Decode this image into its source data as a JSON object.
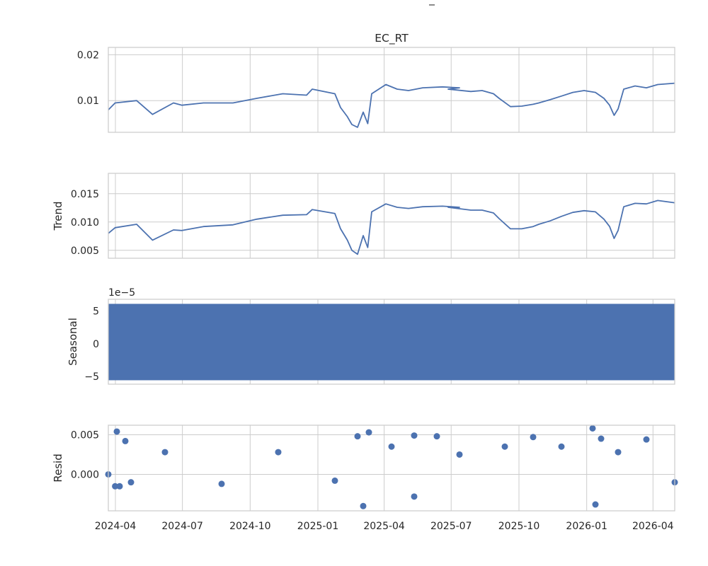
{
  "figure": {
    "suptitle": "_",
    "line_color": "#4c72b0",
    "grid_color": "#cccccc",
    "spine_color": "#cccccc",
    "background": "#ffffff"
  },
  "chart_data": [
    {
      "type": "line",
      "title": "EC_RT",
      "ylabel": "",
      "x_range": [
        "2024-03-20",
        "2026-04-30"
      ],
      "ylim": [
        0.0031,
        0.0216
      ],
      "yticks": [
        {
          "v": 0.01,
          "label": "0.01"
        },
        {
          "v": 0.02,
          "label": "0.02"
        }
      ],
      "grid": true,
      "series": [
        {
          "values": [
            [
              0.0,
              0.008
            ],
            [
              0.012,
              0.0095
            ],
            [
              0.05,
              0.01
            ],
            [
              0.078,
              0.007
            ],
            [
              0.115,
              0.0095
            ],
            [
              0.13,
              0.009
            ],
            [
              0.168,
              0.0095
            ],
            [
              0.22,
              0.0095
            ],
            [
              0.262,
              0.0105
            ],
            [
              0.308,
              0.0115
            ],
            [
              0.35,
              0.0112
            ],
            [
              0.36,
              0.0125
            ],
            [
              0.4,
              0.0115
            ],
            [
              0.41,
              0.0085
            ],
            [
              0.422,
              0.0065
            ],
            [
              0.43,
              0.0048
            ],
            [
              0.44,
              0.0042
            ],
            [
              0.45,
              0.0075
            ],
            [
              0.458,
              0.005
            ],
            [
              0.465,
              0.0115
            ],
            [
              0.49,
              0.0135
            ],
            [
              0.51,
              0.0125
            ],
            [
              0.53,
              0.0122
            ],
            [
              0.555,
              0.0128
            ],
            [
              0.59,
              0.013
            ],
            [
              0.62,
              0.0128
            ],
            [
              0.6,
              0.0125
            ],
            [
              0.64,
              0.012
            ],
            [
              0.66,
              0.0122
            ],
            [
              0.68,
              0.0115
            ],
            [
              0.69,
              0.0105
            ],
            [
              0.71,
              0.0087
            ],
            [
              0.73,
              0.0088
            ],
            [
              0.75,
              0.0092
            ],
            [
              0.76,
              0.0095
            ],
            [
              0.78,
              0.0102
            ],
            [
              0.8,
              0.011
            ],
            [
              0.82,
              0.0118
            ],
            [
              0.84,
              0.0122
            ],
            [
              0.86,
              0.0118
            ],
            [
              0.875,
              0.0105
            ],
            [
              0.885,
              0.009
            ],
            [
              0.893,
              0.0068
            ],
            [
              0.9,
              0.0082
            ],
            [
              0.91,
              0.0125
            ],
            [
              0.93,
              0.0132
            ],
            [
              0.95,
              0.0128
            ],
            [
              0.97,
              0.0135
            ],
            [
              1.0,
              0.0138
            ]
          ]
        }
      ]
    },
    {
      "type": "line",
      "title": "",
      "ylabel": "Trend",
      "x_range": [
        "2024-03-20",
        "2026-04-30"
      ],
      "ylim": [
        0.0036,
        0.0186
      ],
      "yticks": [
        {
          "v": 0.005,
          "label": "0.005"
        },
        {
          "v": 0.01,
          "label": "0.010"
        },
        {
          "v": 0.015,
          "label": "0.015"
        }
      ],
      "grid": true,
      "series": [
        {
          "values": [
            [
              0.0,
              0.008
            ],
            [
              0.012,
              0.009
            ],
            [
              0.05,
              0.0096
            ],
            [
              0.078,
              0.0068
            ],
            [
              0.115,
              0.0086
            ],
            [
              0.13,
              0.0085
            ],
            [
              0.168,
              0.0092
            ],
            [
              0.22,
              0.0095
            ],
            [
              0.262,
              0.0105
            ],
            [
              0.308,
              0.0112
            ],
            [
              0.35,
              0.0113
            ],
            [
              0.36,
              0.0122
            ],
            [
              0.4,
              0.0115
            ],
            [
              0.41,
              0.0088
            ],
            [
              0.422,
              0.0068
            ],
            [
              0.43,
              0.005
            ],
            [
              0.44,
              0.0043
            ],
            [
              0.45,
              0.0076
            ],
            [
              0.458,
              0.0055
            ],
            [
              0.465,
              0.0118
            ],
            [
              0.49,
              0.0132
            ],
            [
              0.51,
              0.0126
            ],
            [
              0.53,
              0.0124
            ],
            [
              0.555,
              0.0127
            ],
            [
              0.59,
              0.0128
            ],
            [
              0.62,
              0.0126
            ],
            [
              0.6,
              0.0126
            ],
            [
              0.64,
              0.0121
            ],
            [
              0.66,
              0.0121
            ],
            [
              0.68,
              0.0116
            ],
            [
              0.69,
              0.0106
            ],
            [
              0.71,
              0.0088
            ],
            [
              0.73,
              0.0088
            ],
            [
              0.75,
              0.0092
            ],
            [
              0.76,
              0.0096
            ],
            [
              0.78,
              0.0102
            ],
            [
              0.8,
              0.011
            ],
            [
              0.82,
              0.0117
            ],
            [
              0.84,
              0.012
            ],
            [
              0.86,
              0.0118
            ],
            [
              0.875,
              0.0105
            ],
            [
              0.885,
              0.0092
            ],
            [
              0.893,
              0.0071
            ],
            [
              0.9,
              0.0085
            ],
            [
              0.91,
              0.0127
            ],
            [
              0.93,
              0.0133
            ],
            [
              0.95,
              0.0132
            ],
            [
              0.97,
              0.0138
            ],
            [
              1.0,
              0.0134
            ]
          ]
        }
      ]
    },
    {
      "type": "line",
      "title": "",
      "ylabel": "Seasonal",
      "offset_label": "1e−5",
      "x_range": [
        "2024-03-20",
        "2026-04-30"
      ],
      "ylim": [
        -6.2,
        6.8
      ],
      "y_multiplier": 1e-05,
      "yticks": [
        {
          "v": -5,
          "label": "−5"
        },
        {
          "v": 0,
          "label": "0"
        },
        {
          "v": 5,
          "label": "5"
        }
      ],
      "grid": true,
      "series": [
        {
          "band": true,
          "min": -5.6,
          "max": 6.1
        }
      ]
    },
    {
      "type": "scatter",
      "title": "",
      "ylabel": "Resid",
      "x_range": [
        "2024-03-20",
        "2026-04-30"
      ],
      "ylim": [
        -0.0046,
        0.0062
      ],
      "yticks": [
        {
          "v": 0.0,
          "label": "0.000"
        },
        {
          "v": 0.005,
          "label": "0.005"
        }
      ],
      "grid": true,
      "series": [
        {
          "values": [
            [
              0.0,
              0.0
            ],
            [
              0.012,
              -0.0015
            ],
            [
              0.015,
              0.0054
            ],
            [
              0.02,
              -0.0015
            ],
            [
              0.03,
              0.0042
            ],
            [
              0.04,
              -0.001
            ],
            [
              0.1,
              0.0028
            ],
            [
              0.2,
              -0.0012
            ],
            [
              0.3,
              0.0028
            ],
            [
              0.4,
              -0.0008
            ],
            [
              0.44,
              0.0048
            ],
            [
              0.45,
              -0.004
            ],
            [
              0.46,
              0.0053
            ],
            [
              0.5,
              0.0035
            ],
            [
              0.54,
              0.0049
            ],
            [
              0.54,
              -0.0028
            ],
            [
              0.58,
              0.0048
            ],
            [
              0.62,
              0.0025
            ],
            [
              0.7,
              0.0035
            ],
            [
              0.75,
              0.0047
            ],
            [
              0.8,
              0.0035
            ],
            [
              0.855,
              0.0058
            ],
            [
              0.86,
              -0.0038
            ],
            [
              0.87,
              0.0045
            ],
            [
              0.9,
              0.0028
            ],
            [
              0.95,
              0.0044
            ],
            [
              1.0,
              -0.001
            ]
          ]
        }
      ]
    }
  ],
  "x_axis": {
    "ticks": [
      {
        "pos": 0.0125,
        "label": "2024-04"
      },
      {
        "pos": 0.1308,
        "label": "2024-07"
      },
      {
        "pos": 0.2504,
        "label": "2024-10"
      },
      {
        "pos": 0.37,
        "label": "2025-01"
      },
      {
        "pos": 0.487,
        "label": "2025-04"
      },
      {
        "pos": 0.6053,
        "label": "2025-07"
      },
      {
        "pos": 0.725,
        "label": "2025-10"
      },
      {
        "pos": 0.8446,
        "label": "2026-01"
      },
      {
        "pos": 0.9616,
        "label": "2026-04"
      }
    ]
  }
}
